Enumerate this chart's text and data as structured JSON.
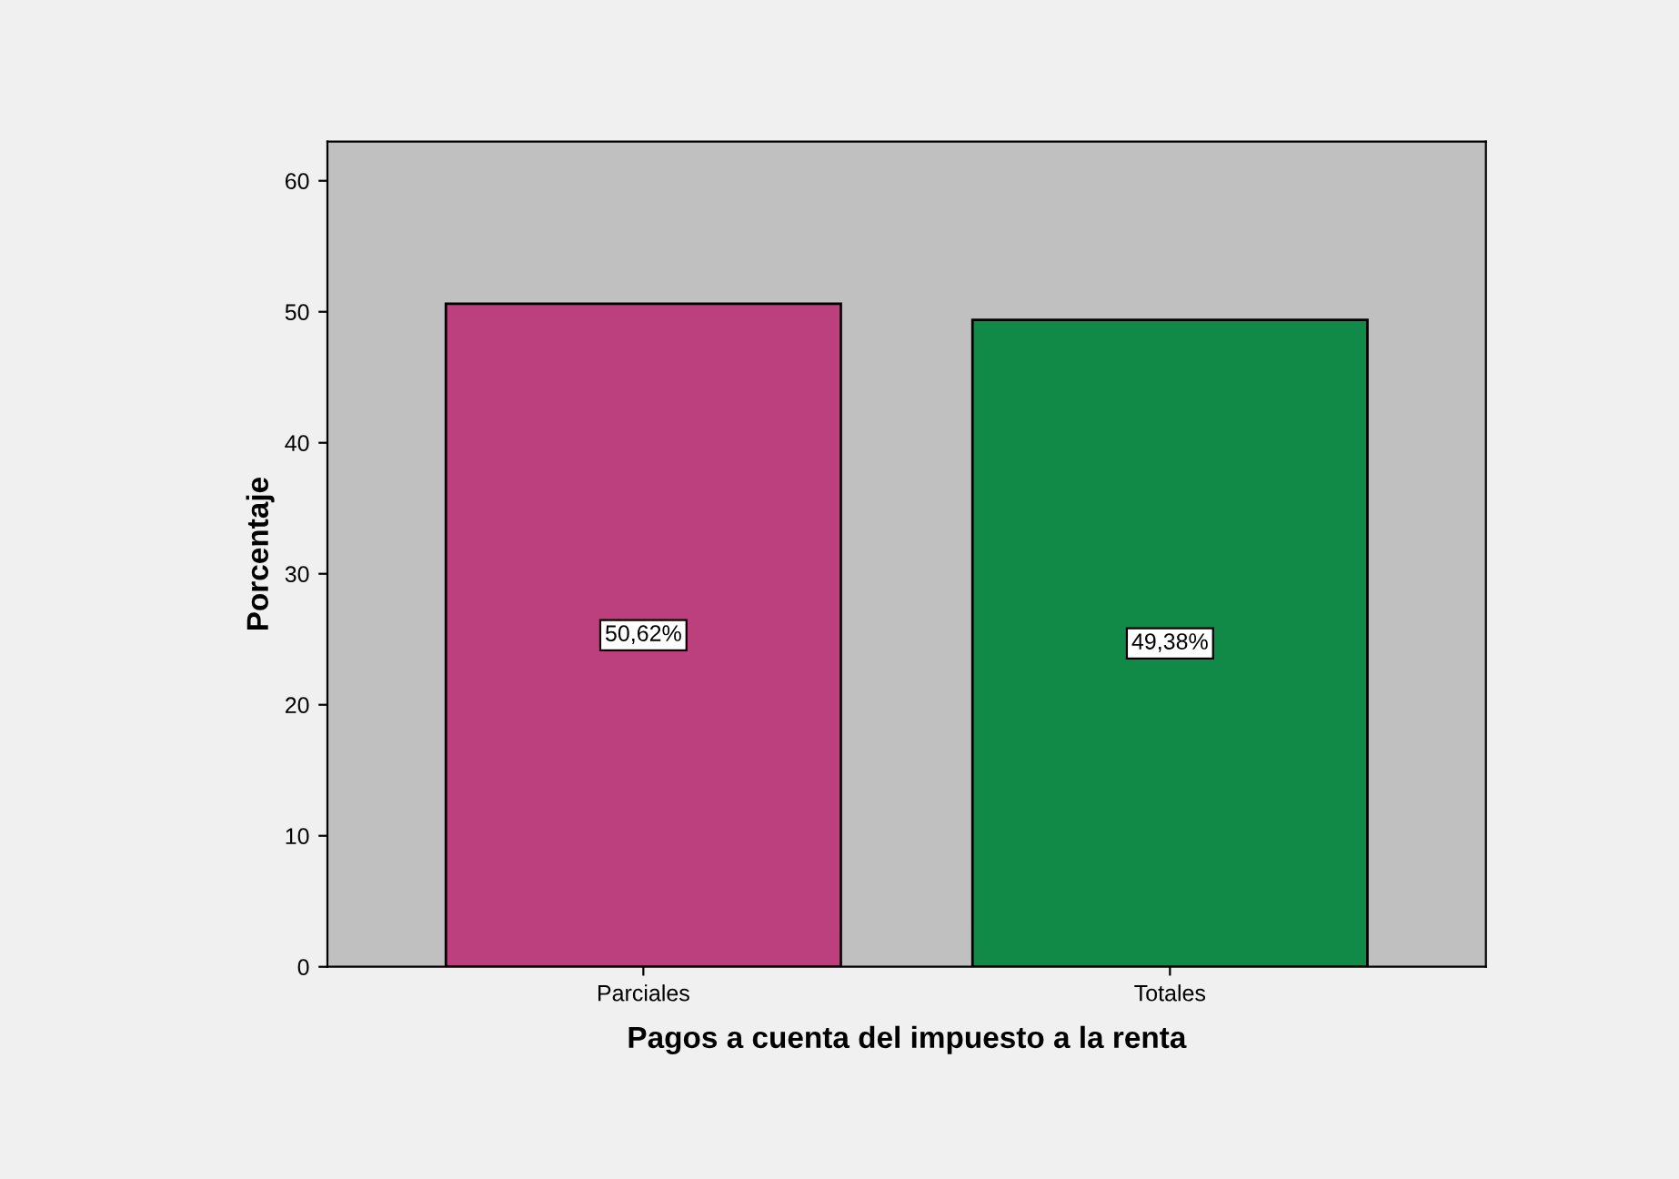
{
  "chart_data": {
    "type": "bar",
    "xlabel": "Pagos a cuenta del impuesto a la renta",
    "ylabel": "Porcentaje",
    "categories": [
      "Parciales",
      "Totales"
    ],
    "values": [
      50.62,
      49.38
    ],
    "colors": [
      "#bc3f7e",
      "#118a48"
    ],
    "value_labels": [
      "50,62%",
      "49,38%"
    ],
    "ylim": [
      0,
      63
    ],
    "yticks": [
      0,
      10,
      20,
      30,
      40,
      50,
      60
    ],
    "grid": false
  }
}
